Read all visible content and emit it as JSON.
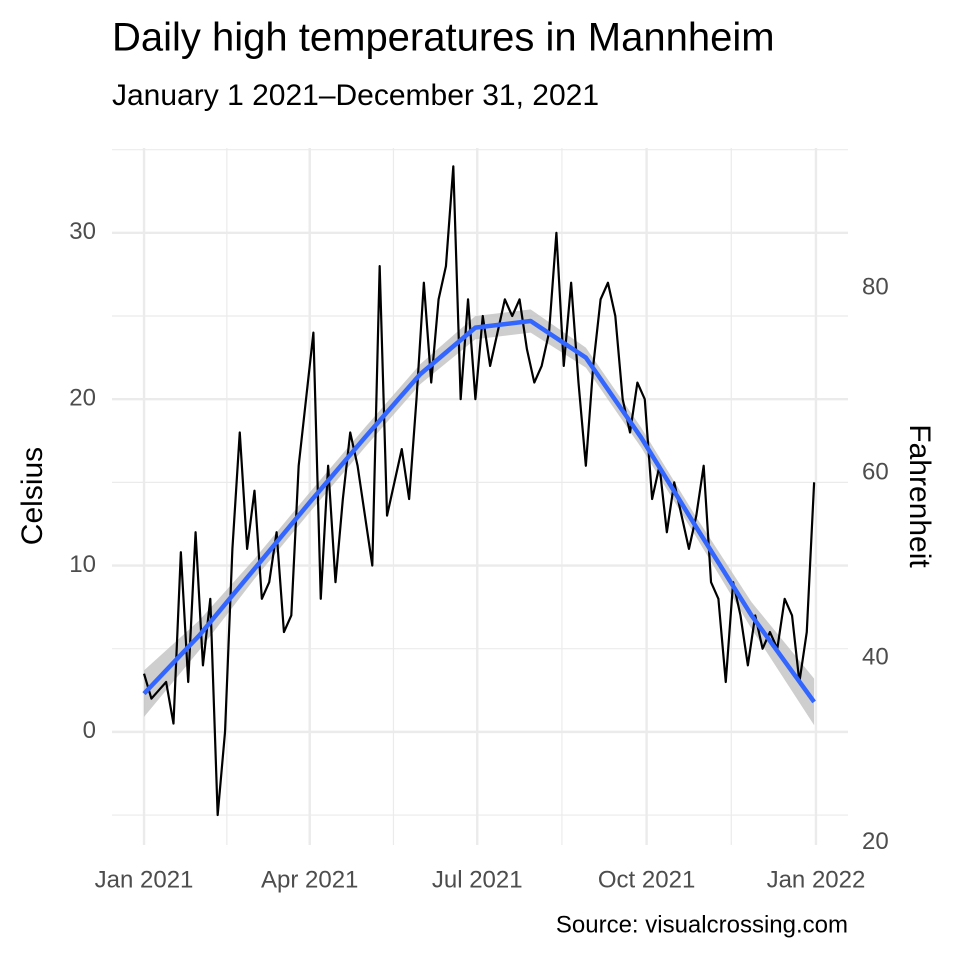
{
  "chart_data": {
    "type": "line",
    "title": "Daily high temperatures in Mannheim",
    "subtitle": "January 1 2021–December 31, 2021",
    "caption": "Source: visualcrossing.com",
    "y_label": "Celsius",
    "y2_label": "Fahrenheit",
    "xlim": [
      -17.4,
      382.4
    ],
    "xticks": [
      {
        "value": 0,
        "label": "Jan 2021"
      },
      {
        "value": 90,
        "label": "Apr 2021"
      },
      {
        "value": 181,
        "label": "Jul 2021"
      },
      {
        "value": 273,
        "label": "Oct 2021"
      },
      {
        "value": 365,
        "label": "Jan 2022"
      }
    ],
    "ylim": [
      -6.8,
      35.1
    ],
    "yticks": [
      0,
      10,
      20,
      30
    ],
    "y2lim": [
      19.76,
      95.18
    ],
    "y2ticks": [
      20,
      40,
      60,
      80
    ],
    "grid": true,
    "series": [
      {
        "color": "#000000",
        "x": [
          0,
          4,
          8,
          12,
          16,
          20,
          24,
          28,
          32,
          36,
          40,
          44,
          48,
          52,
          56,
          60,
          64,
          68,
          72,
          76,
          80,
          84,
          88,
          92,
          96,
          100,
          104,
          108,
          112,
          116,
          120,
          124,
          128,
          132,
          136,
          140,
          144,
          148,
          152,
          156,
          160,
          164,
          168,
          172,
          176,
          180,
          184,
          188,
          192,
          196,
          200,
          204,
          208,
          212,
          216,
          220,
          224,
          228,
          232,
          236,
          240,
          244,
          248,
          252,
          256,
          260,
          264,
          268,
          272,
          276,
          280,
          284,
          288,
          292,
          296,
          300,
          304,
          308,
          312,
          316,
          320,
          324,
          328,
          332,
          336,
          340,
          344,
          348,
          352,
          356,
          360,
          364
        ],
        "values": [
          3.5,
          2,
          2.5,
          3,
          0.5,
          10.8,
          3,
          12,
          4,
          8,
          -5,
          0,
          11,
          18,
          11,
          14.5,
          8,
          9,
          12,
          6,
          7,
          16,
          20,
          24,
          8,
          16,
          9,
          14,
          18,
          16,
          13,
          10,
          28,
          13,
          15,
          17,
          14,
          20,
          27,
          21,
          26,
          28,
          34,
          20,
          26,
          20,
          25,
          22,
          24,
          26,
          25,
          26,
          23,
          21,
          22,
          24,
          30,
          22,
          27,
          21,
          16,
          22,
          26,
          27,
          25,
          20,
          18,
          21,
          20,
          14,
          16,
          12,
          15,
          13,
          11,
          13,
          16,
          9,
          8,
          3,
          9,
          7,
          4,
          7,
          5,
          6,
          5,
          8,
          7,
          3,
          6,
          15
        ]
      },
      {
        "color": "#3366ff",
        "band_color": "#bebebe",
        "x": [
          0,
          30,
          60,
          90,
          120,
          150,
          180,
          210,
          240,
          270,
          300,
          330,
          364
        ],
        "values": [
          2.3,
          5.8,
          9.8,
          13.8,
          17.7,
          21.5,
          24.3,
          24.7,
          22.5,
          17.7,
          12.3,
          7,
          1.8
        ],
        "lower": [
          0.9,
          4.9,
          9.2,
          13.2,
          17.1,
          20.9,
          23.6,
          24,
          21.9,
          17.1,
          11.7,
          6.2,
          0.4
        ],
        "upper": [
          3.7,
          6.7,
          10.4,
          14.4,
          18.3,
          22.1,
          25,
          25.4,
          23.1,
          18.3,
          12.9,
          7.8,
          3.2
        ]
      }
    ]
  }
}
